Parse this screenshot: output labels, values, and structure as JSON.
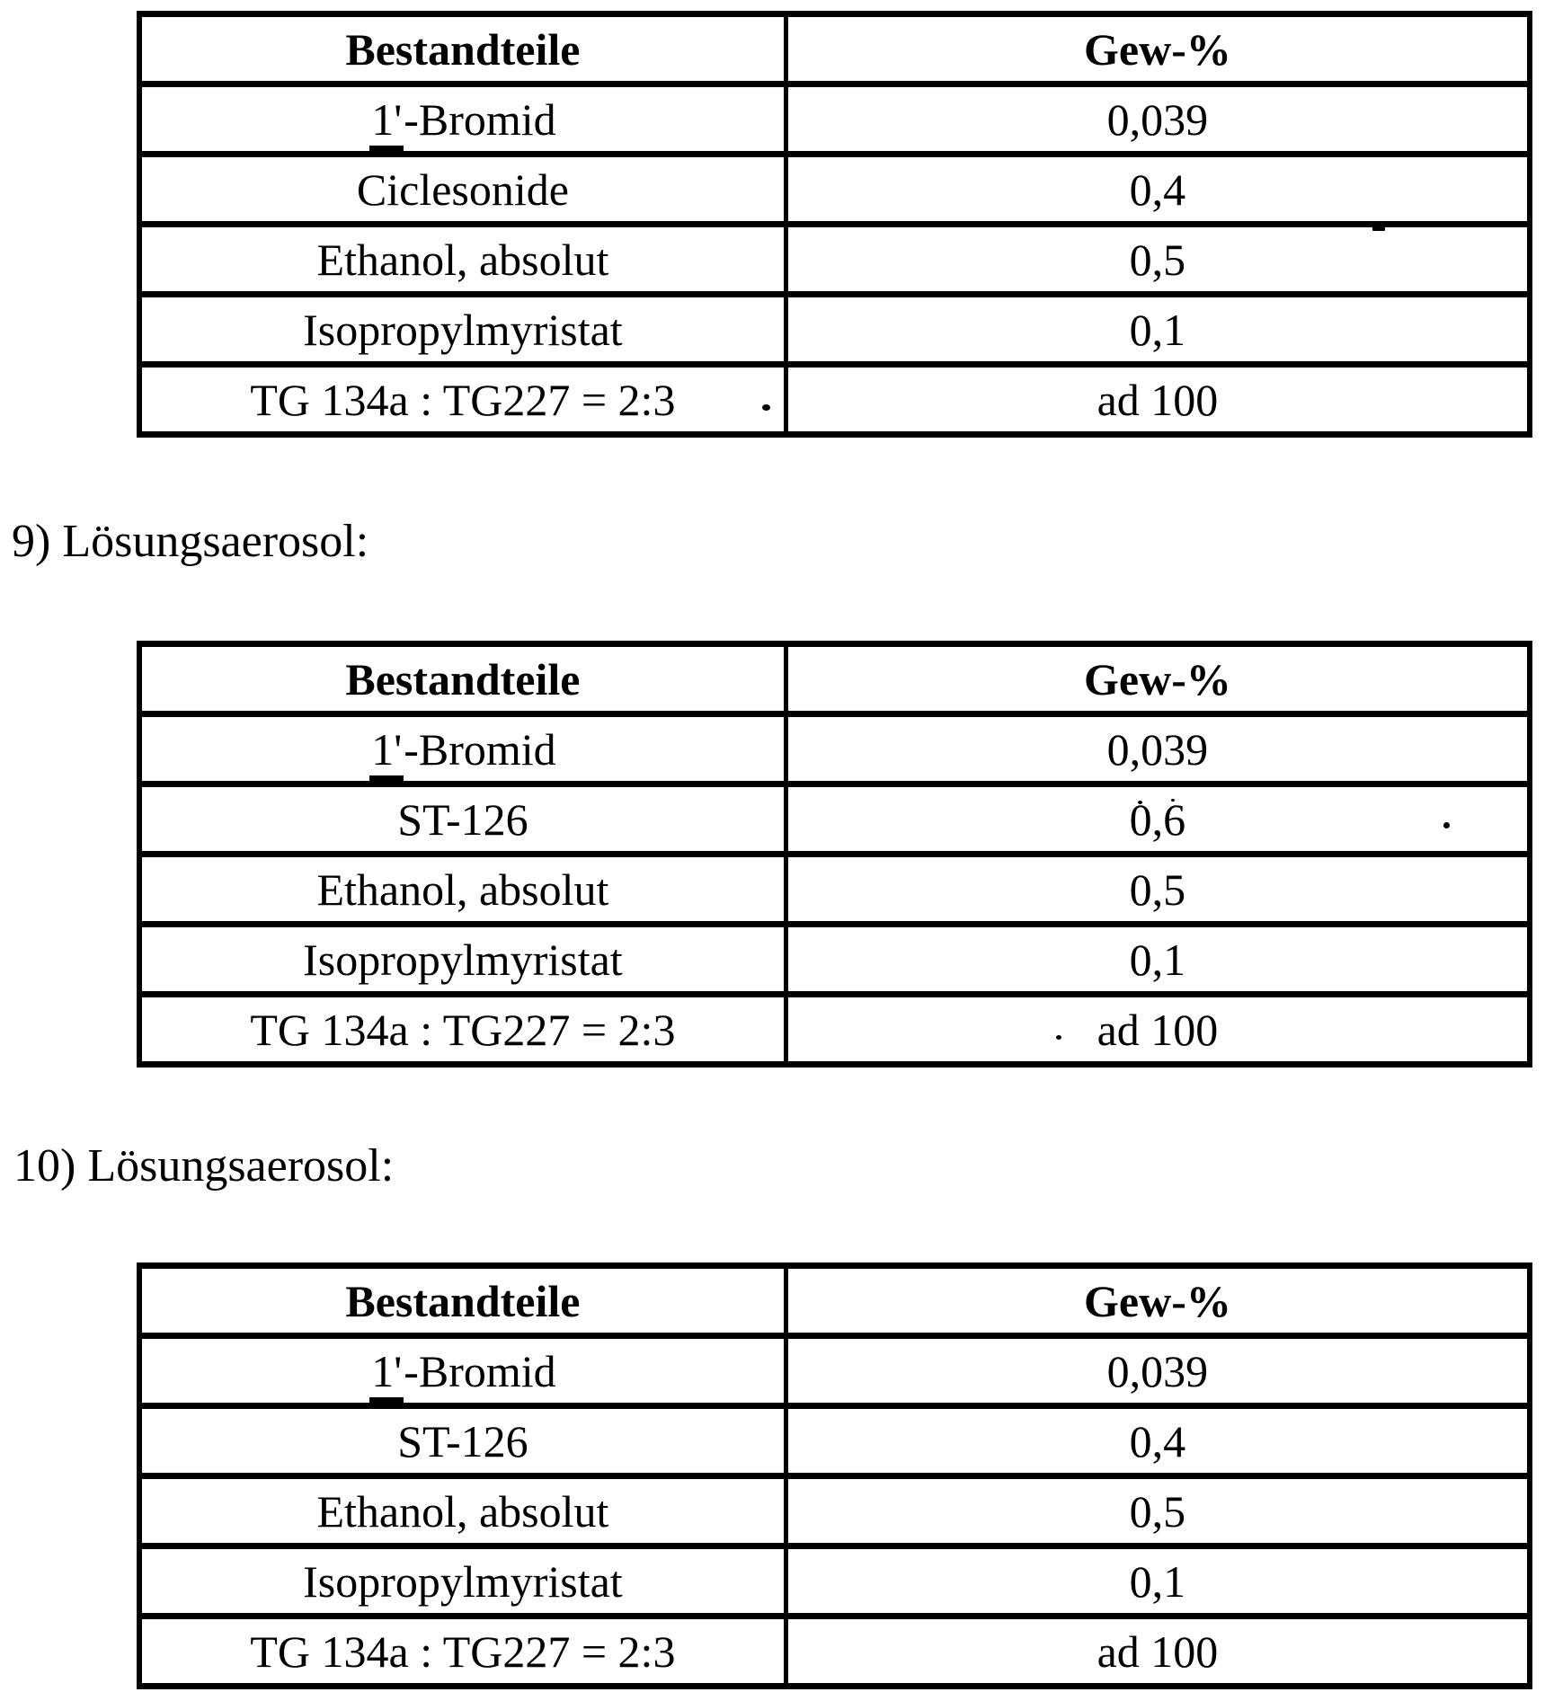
{
  "document": {
    "headings": {
      "h9": "9) Lösungsaerosol:",
      "h10": "10) Lösungsaerosol:"
    },
    "tables": [
      {
        "header": {
          "component": "Bestandteile",
          "weight": "Gew-%"
        },
        "rows": [
          {
            "component": "1'-Bromid",
            "component_parts": {
              "underlined": "1'",
              "rest": "-Bromid"
            },
            "value": "0,039"
          },
          {
            "component": "Ciclesonide",
            "value": "0,4"
          },
          {
            "component": "Ethanol, absolut",
            "value": "0,5"
          },
          {
            "component": "Isopropylmyristat",
            "value": "0,1"
          },
          {
            "component": "TG 134a : TG227 = 2:3",
            "value": "ad 100"
          }
        ]
      },
      {
        "header": {
          "component": "Bestandteile",
          "weight": "Gew-%"
        },
        "rows": [
          {
            "component": "1'-Bromid",
            "component_parts": {
              "underlined": "1'",
              "rest": "-Bromid"
            },
            "value": "0,039"
          },
          {
            "component": "ST-126",
            "value": "0,6"
          },
          {
            "component": "Ethanol, absolut",
            "value": "0,5"
          },
          {
            "component": "Isopropylmyristat",
            "value": "0,1"
          },
          {
            "component": "TG 134a : TG227 = 2:3",
            "value": "ad 100"
          }
        ]
      },
      {
        "header": {
          "component": "Bestandteile",
          "weight": "Gew-%"
        },
        "rows": [
          {
            "component": "1'-Bromid",
            "component_parts": {
              "underlined": "1'",
              "rest": "-Bromid"
            },
            "value": "0,039"
          },
          {
            "component": "ST-126",
            "value": "0,4"
          },
          {
            "component": "Ethanol, absolut",
            "value": "0,5"
          },
          {
            "component": "Isopropylmyristat",
            "value": "0,1"
          },
          {
            "component": "TG 134a : TG227 = 2:3",
            "value": "ad 100"
          }
        ]
      }
    ],
    "colors": {
      "ink": "#000000",
      "paper": "#ffffff"
    }
  }
}
